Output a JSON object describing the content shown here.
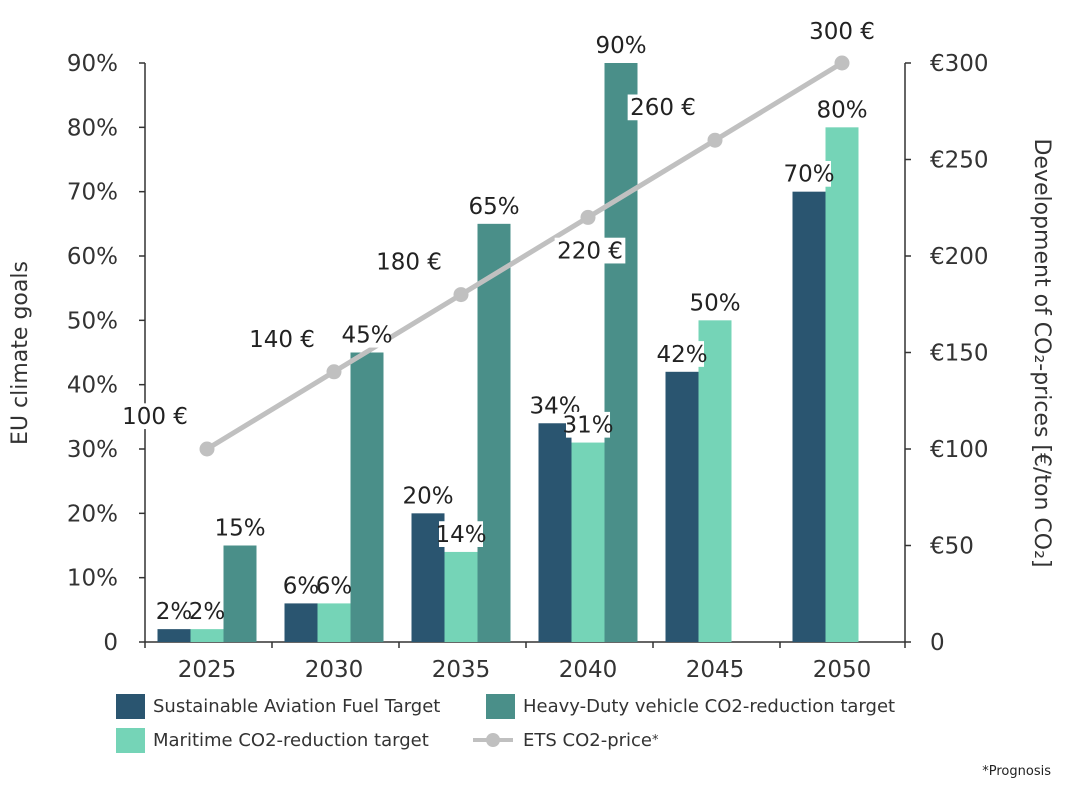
{
  "chart_data": {
    "type": "bar",
    "categories": [
      "2025",
      "2030",
      "2035",
      "2040",
      "2045",
      "2050"
    ],
    "series": [
      {
        "name": "Sustainable Aviation Fuel Target",
        "color": "#2a5570",
        "values": [
          2,
          6,
          20,
          34,
          42,
          70
        ],
        "labels": [
          "2%",
          "6%",
          "20%",
          "34%",
          "42%",
          "70%"
        ]
      },
      {
        "name": "Maritime CO2-reduction target",
        "color": "#75d4b7",
        "values": [
          2,
          6,
          14,
          31,
          50,
          80
        ],
        "labels": [
          "2%",
          "6%",
          "14%",
          "31%",
          "50%",
          "80%"
        ]
      },
      {
        "name": "Heavy-Duty vehicle CO2-reduction target",
        "color": "#4a8f89",
        "values": [
          15,
          45,
          65,
          90,
          null,
          null
        ],
        "labels": [
          "15%",
          "45%",
          "65%",
          "90%",
          "",
          ""
        ]
      }
    ],
    "line_series": {
      "name": "ETS CO2-price",
      "name_suffix": "*",
      "color": "#c0c0c0",
      "values": [
        100,
        140,
        180,
        220,
        260,
        300
      ],
      "labels": [
        "100 €",
        "140 €",
        "180 €",
        "220 €",
        "260 €",
        "300 €"
      ]
    },
    "ylabel": "EU climate goals",
    "y2label": "Development of CO₂-prices [€/ton CO₂]",
    "ylim": [
      0,
      90
    ],
    "y2lim": [
      0,
      300
    ],
    "yticks": [
      "0",
      "10%",
      "20%",
      "30%",
      "40%",
      "50%",
      "60%",
      "70%",
      "80%",
      "90%"
    ],
    "y2ticks": [
      "0",
      "€50",
      "€100",
      "€150",
      "€200",
      "€250",
      "€300"
    ],
    "grid": false,
    "legend_position": "bottom",
    "footnote": "*Prognosis"
  }
}
